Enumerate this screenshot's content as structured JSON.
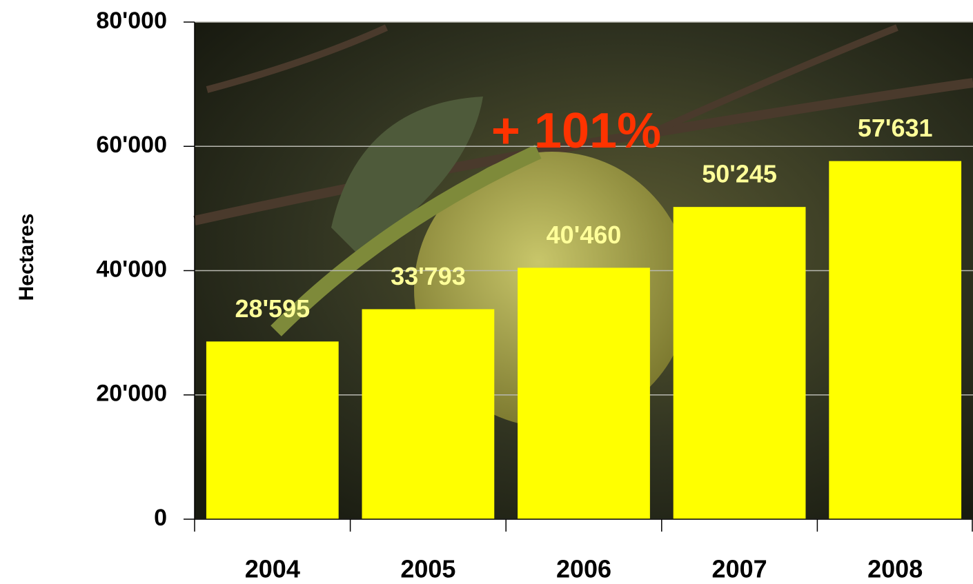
{
  "chart_data": {
    "type": "bar",
    "y_axis_label": "Hectares",
    "annotation": "+ 101%",
    "categories": [
      "2004",
      "2005",
      "2006",
      "2007",
      "2008"
    ],
    "values": [
      28595,
      33793,
      40460,
      50245,
      57631
    ],
    "value_labels": [
      "28'595",
      "33'793",
      "40'460",
      "50'245",
      "57'631"
    ],
    "color": "#ffff00",
    "ylim": [
      0,
      80000
    ],
    "yticks": [
      0,
      {
        "value": 20000,
        "label": "20'000"
      },
      {
        "value": 40000,
        "label": "40'000"
      },
      {
        "value": 60000,
        "label": "60'000"
      },
      {
        "value": 80000,
        "label": "80'000"
      }
    ],
    "grid": true
  }
}
